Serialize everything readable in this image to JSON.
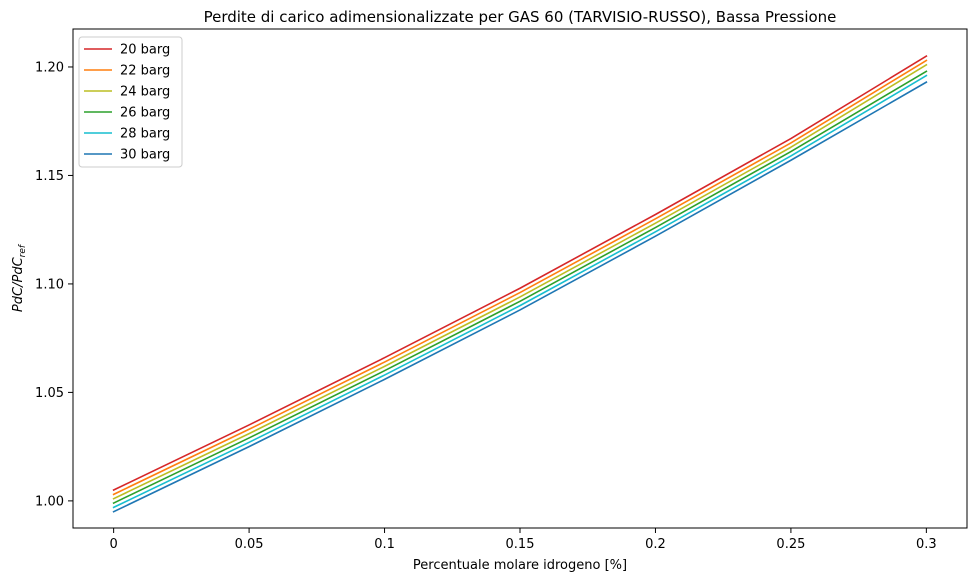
{
  "chart_data": {
    "type": "line",
    "title": "Perdite di carico adimensionalizzate per GAS 60 (TARVISIO-RUSSO), Bassa Pressione",
    "xlabel": "Percentuale molare idrogeno [%]",
    "ylabel_main": "PdC/PdC",
    "ylabel_sub": "ref",
    "xlim": [
      -0.015,
      0.315
    ],
    "ylim": [
      0.9875,
      1.2175
    ],
    "xticks": [
      0,
      0.05,
      0.1,
      0.15,
      0.2,
      0.25,
      0.3
    ],
    "xtick_labels": [
      "0",
      "0.05",
      "0.1",
      "0.15",
      "0.2",
      "0.25",
      "0.3"
    ],
    "yticks": [
      1.0,
      1.05,
      1.1,
      1.15,
      1.2
    ],
    "ytick_labels": [
      "1.00",
      "1.05",
      "1.10",
      "1.15",
      "1.20"
    ],
    "grid": false,
    "legend_position": "top-left",
    "x": [
      0,
      0.05,
      0.1,
      0.15,
      0.2,
      0.25,
      0.3
    ],
    "series": [
      {
        "name": "20 barg",
        "color": "#d62728",
        "values": [
          1.005,
          1.035,
          1.066,
          1.098,
          1.132,
          1.167,
          1.205
        ]
      },
      {
        "name": "22 barg",
        "color": "#ff7f0e",
        "values": [
          1.003,
          1.033,
          1.064,
          1.096,
          1.13,
          1.165,
          1.203
        ]
      },
      {
        "name": "24 barg",
        "color": "#bcbd22",
        "values": [
          1.001,
          1.031,
          1.062,
          1.094,
          1.128,
          1.163,
          1.201
        ]
      },
      {
        "name": "26 barg",
        "color": "#2ca02c",
        "values": [
          0.999,
          1.029,
          1.06,
          1.092,
          1.126,
          1.161,
          1.198
        ]
      },
      {
        "name": "28 barg",
        "color": "#17becf",
        "values": [
          0.997,
          1.027,
          1.058,
          1.09,
          1.124,
          1.159,
          1.196
        ]
      },
      {
        "name": "30 barg",
        "color": "#1f77b4",
        "values": [
          0.995,
          1.025,
          1.056,
          1.088,
          1.122,
          1.157,
          1.193
        ]
      }
    ]
  }
}
